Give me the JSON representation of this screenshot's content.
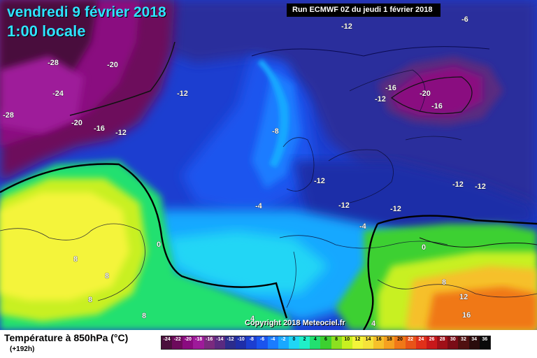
{
  "header": {
    "date": "vendredi 9 février 2018",
    "time": "1:00 locale",
    "run": "Run ECMWF 0Z du jeudi 1 février 2018"
  },
  "map": {
    "copyright": "Copyright 2018 Meteociel.fr",
    "contour_labels": [
      {
        "text": "-28",
        "id": "a"
      },
      {
        "text": "-20",
        "id": "b"
      },
      {
        "text": "-24",
        "id": "c"
      },
      {
        "text": "-28",
        "id": "d"
      },
      {
        "text": "-20",
        "id": "e"
      },
      {
        "text": "-16",
        "id": "f"
      },
      {
        "text": "-12",
        "id": "g"
      },
      {
        "text": "-12",
        "id": "h"
      },
      {
        "text": "-12",
        "id": "i"
      },
      {
        "text": "-8",
        "id": "j"
      },
      {
        "text": "-6",
        "id": "k"
      },
      {
        "text": "-16",
        "id": "l"
      },
      {
        "text": "-20",
        "id": "m"
      },
      {
        "text": "-12",
        "id": "n"
      },
      {
        "text": "-16",
        "id": "o"
      },
      {
        "text": "-12",
        "id": "p"
      },
      {
        "text": "-12",
        "id": "q"
      },
      {
        "text": "-12",
        "id": "r"
      },
      {
        "text": "-12",
        "id": "s"
      },
      {
        "text": "-12",
        "id": "t"
      },
      {
        "text": "-4",
        "id": "u"
      },
      {
        "text": "-4",
        "id": "v"
      },
      {
        "text": "0",
        "id": "w"
      },
      {
        "text": "0",
        "id": "x"
      },
      {
        "text": "8",
        "id": "y"
      },
      {
        "text": "8",
        "id": "z"
      },
      {
        "text": "8",
        "id": "aa"
      },
      {
        "text": "8",
        "id": "ab"
      },
      {
        "text": "4",
        "id": "ac"
      },
      {
        "text": "4",
        "id": "ad"
      },
      {
        "text": "8",
        "id": "ae"
      },
      {
        "text": "12",
        "id": "af"
      },
      {
        "text": "16",
        "id": "ag"
      }
    ]
  },
  "legend": {
    "title": "Température à 850hPa (°C)",
    "subtitle": "(+192h)",
    "scale": [
      {
        "v": "-24",
        "c": "#4a0f3c"
      },
      {
        "v": "-22",
        "c": "#6d0a5c"
      },
      {
        "v": "-20",
        "c": "#8a0a80"
      },
      {
        "v": "-18",
        "c": "#9e1a9a"
      },
      {
        "v": "-16",
        "c": "#7a2a7e"
      },
      {
        "v": "-14",
        "c": "#5a2a80"
      },
      {
        "v": "-12",
        "c": "#2c2c8c"
      },
      {
        "v": "-10",
        "c": "#1f2ea8"
      },
      {
        "v": "-8",
        "c": "#1c3ed0"
      },
      {
        "v": "-6",
        "c": "#1a54ee"
      },
      {
        "v": "-4",
        "c": "#1a7cff"
      },
      {
        "v": "-2",
        "c": "#19a8ff"
      },
      {
        "v": "0",
        "c": "#20d6f5"
      },
      {
        "v": "2",
        "c": "#20f0c8"
      },
      {
        "v": "4",
        "c": "#22e070"
      },
      {
        "v": "6",
        "c": "#3cd030"
      },
      {
        "v": "8",
        "c": "#8ce020"
      },
      {
        "v": "10",
        "c": "#c8f020"
      },
      {
        "v": "12",
        "c": "#f4f43a"
      },
      {
        "v": "14",
        "c": "#f6e23a"
      },
      {
        "v": "16",
        "c": "#f6c02a"
      },
      {
        "v": "18",
        "c": "#f5a020"
      },
      {
        "v": "20",
        "c": "#f07818"
      },
      {
        "v": "22",
        "c": "#e85418"
      },
      {
        "v": "24",
        "c": "#e0301a"
      },
      {
        "v": "26",
        "c": "#c8181a"
      },
      {
        "v": "28",
        "c": "#a01018"
      },
      {
        "v": "30",
        "c": "#7a0c16"
      },
      {
        "v": "32",
        "c": "#501010"
      },
      {
        "v": "34",
        "c": "#2a0c0c"
      },
      {
        "v": "36",
        "c": "#0a0a0a"
      }
    ]
  }
}
